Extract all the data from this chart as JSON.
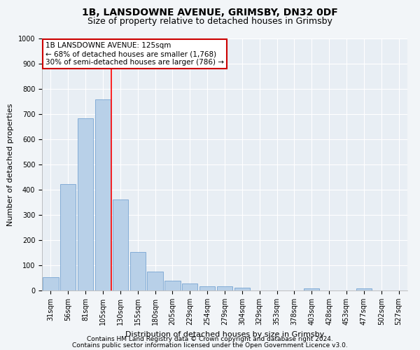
{
  "title1": "1B, LANSDOWNE AVENUE, GRIMSBY, DN32 0DF",
  "title2": "Size of property relative to detached houses in Grimsby",
  "xlabel": "Distribution of detached houses by size in Grimsby",
  "ylabel": "Number of detached properties",
  "categories": [
    "31sqm",
    "56sqm",
    "81sqm",
    "105sqm",
    "130sqm",
    "155sqm",
    "180sqm",
    "205sqm",
    "229sqm",
    "254sqm",
    "279sqm",
    "304sqm",
    "329sqm",
    "353sqm",
    "378sqm",
    "403sqm",
    "428sqm",
    "453sqm",
    "477sqm",
    "502sqm",
    "527sqm"
  ],
  "values": [
    52,
    422,
    683,
    759,
    362,
    153,
    75,
    40,
    28,
    17,
    17,
    10,
    0,
    0,
    0,
    8,
    0,
    0,
    8,
    0,
    0
  ],
  "bar_color": "#b8d0e8",
  "bar_edge_color": "#6699cc",
  "red_line_index": 3,
  "annotation_line1": "1B LANSDOWNE AVENUE: 125sqm",
  "annotation_line2": "← 68% of detached houses are smaller (1,768)",
  "annotation_line3": "30% of semi-detached houses are larger (786) →",
  "annotation_box_color": "#ffffff",
  "annotation_box_edge_color": "#cc0000",
  "ylim": [
    0,
    1000
  ],
  "yticks": [
    0,
    100,
    200,
    300,
    400,
    500,
    600,
    700,
    800,
    900,
    1000
  ],
  "footer1": "Contains HM Land Registry data © Crown copyright and database right 2024.",
  "footer2": "Contains public sector information licensed under the Open Government Licence v3.0.",
  "background_color": "#f2f5f8",
  "plot_background_color": "#e8eef4",
  "title1_fontsize": 10,
  "title2_fontsize": 9,
  "tick_fontsize": 7,
  "ylabel_fontsize": 8,
  "xlabel_fontsize": 8,
  "ann_fontsize": 7.5,
  "footer_fontsize": 6.5
}
